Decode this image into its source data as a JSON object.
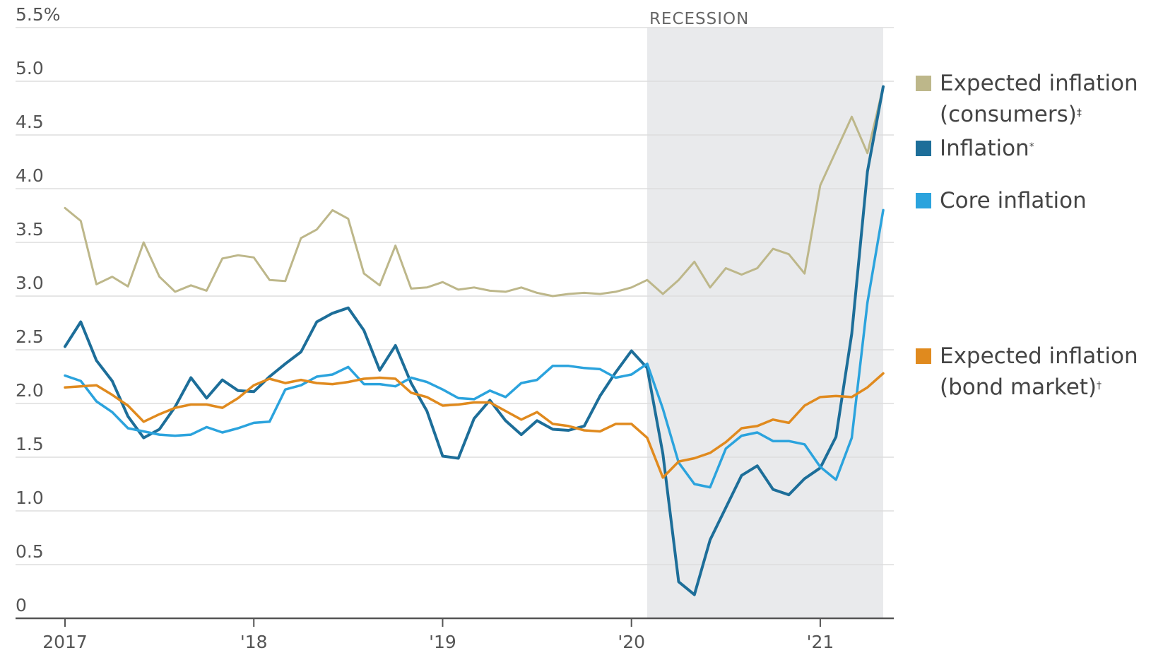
{
  "chart_data": {
    "type": "line",
    "y_axis": {
      "ticks": [
        "0",
        "0.5",
        "1.0",
        "1.5",
        "2.0",
        "2.5",
        "3.0",
        "3.5",
        "4.0",
        "4.5",
        "5.0",
        "5.5%"
      ],
      "ylim": [
        0,
        5.5
      ]
    },
    "x_axis": {
      "ticks": [
        "2017",
        "'18",
        "'19",
        "'20",
        "'21"
      ],
      "xlim": [
        "2017-01",
        "2021-05"
      ]
    },
    "recession": {
      "label": "RECESSION",
      "start": "2020-02",
      "end": "2021-05"
    },
    "grid": "horizontal",
    "legend_position": "right",
    "series": [
      {
        "name": "Expected inflation",
        "name_line2": "(consumers)",
        "marker": "‡",
        "color": "#bdb78a",
        "x": [
          "2017-01",
          "2017-02",
          "2017-03",
          "2017-04",
          "2017-05",
          "2017-06",
          "2017-07",
          "2017-08",
          "2017-09",
          "2017-10",
          "2017-11",
          "2017-12",
          "2018-01",
          "2018-02",
          "2018-03",
          "2018-04",
          "2018-05",
          "2018-06",
          "2018-07",
          "2018-08",
          "2018-09",
          "2018-10",
          "2018-11",
          "2018-12",
          "2019-01",
          "2019-02",
          "2019-03",
          "2019-04",
          "2019-05",
          "2019-06",
          "2019-07",
          "2019-08",
          "2019-09",
          "2019-10",
          "2019-11",
          "2019-12",
          "2020-01",
          "2020-02",
          "2020-03",
          "2020-04",
          "2020-05",
          "2020-06",
          "2020-07",
          "2020-08",
          "2020-09",
          "2020-10",
          "2020-11",
          "2020-12",
          "2021-01",
          "2021-02",
          "2021-03",
          "2021-04",
          "2021-05"
        ],
        "values": [
          3.82,
          3.7,
          3.11,
          3.18,
          3.09,
          3.5,
          3.18,
          3.04,
          3.1,
          3.05,
          3.35,
          3.38,
          3.36,
          3.15,
          3.14,
          3.54,
          3.62,
          3.8,
          3.72,
          3.21,
          3.1,
          3.47,
          3.07,
          3.08,
          3.13,
          3.06,
          3.08,
          3.05,
          3.04,
          3.08,
          3.03,
          3.0,
          3.02,
          3.03,
          3.02,
          3.04,
          3.08,
          3.15,
          3.02,
          3.15,
          3.32,
          3.08,
          3.26,
          3.2,
          3.26,
          3.44,
          3.39,
          3.21,
          4.03,
          4.35,
          4.67,
          4.33,
          4.95
        ]
      },
      {
        "name": "Inflation",
        "marker": "*",
        "color": "#1d6e99",
        "x": [
          "2017-01",
          "2017-02",
          "2017-03",
          "2017-04",
          "2017-05",
          "2017-06",
          "2017-07",
          "2017-08",
          "2017-09",
          "2017-10",
          "2017-11",
          "2017-12",
          "2018-01",
          "2018-02",
          "2018-03",
          "2018-04",
          "2018-05",
          "2018-06",
          "2018-07",
          "2018-08",
          "2018-09",
          "2018-10",
          "2018-11",
          "2018-12",
          "2019-01",
          "2019-02",
          "2019-03",
          "2019-04",
          "2019-05",
          "2019-06",
          "2019-07",
          "2019-08",
          "2019-09",
          "2019-10",
          "2019-11",
          "2019-12",
          "2020-01",
          "2020-02",
          "2020-03",
          "2020-04",
          "2020-05",
          "2020-06",
          "2020-07",
          "2020-08",
          "2020-09",
          "2020-10",
          "2020-11",
          "2020-12",
          "2021-01",
          "2021-02",
          "2021-03",
          "2021-04",
          "2021-05"
        ],
        "values": [
          2.53,
          2.76,
          2.4,
          2.21,
          1.88,
          1.68,
          1.76,
          1.97,
          2.24,
          2.05,
          2.22,
          2.12,
          2.11,
          2.25,
          2.37,
          2.48,
          2.76,
          2.84,
          2.89,
          2.68,
          2.31,
          2.54,
          2.19,
          1.93,
          1.51,
          1.49,
          1.86,
          2.03,
          1.84,
          1.71,
          1.84,
          1.76,
          1.75,
          1.79,
          2.07,
          2.29,
          2.49,
          2.33,
          1.53,
          0.34,
          0.22,
          0.73,
          1.03,
          1.33,
          1.42,
          1.2,
          1.15,
          1.3,
          1.4,
          1.69,
          2.65,
          4.16,
          4.95
        ]
      },
      {
        "name": "Core inflation",
        "color": "#2ba3dd",
        "x": [
          "2017-01",
          "2017-02",
          "2017-03",
          "2017-04",
          "2017-05",
          "2017-06",
          "2017-07",
          "2017-08",
          "2017-09",
          "2017-10",
          "2017-11",
          "2017-12",
          "2018-01",
          "2018-02",
          "2018-03",
          "2018-04",
          "2018-05",
          "2018-06",
          "2018-07",
          "2018-08",
          "2018-09",
          "2018-10",
          "2018-11",
          "2018-12",
          "2019-01",
          "2019-02",
          "2019-03",
          "2019-04",
          "2019-05",
          "2019-06",
          "2019-07",
          "2019-08",
          "2019-09",
          "2019-10",
          "2019-11",
          "2019-12",
          "2020-01",
          "2020-02",
          "2020-03",
          "2020-04",
          "2020-05",
          "2020-06",
          "2020-07",
          "2020-08",
          "2020-09",
          "2020-10",
          "2020-11",
          "2020-12",
          "2021-01",
          "2021-02",
          "2021-03",
          "2021-04",
          "2021-05"
        ],
        "values": [
          2.26,
          2.21,
          2.02,
          1.92,
          1.77,
          1.74,
          1.71,
          1.7,
          1.71,
          1.78,
          1.73,
          1.77,
          1.82,
          1.83,
          2.13,
          2.17,
          2.25,
          2.27,
          2.34,
          2.18,
          2.18,
          2.16,
          2.24,
          2.2,
          2.13,
          2.05,
          2.04,
          2.12,
          2.06,
          2.19,
          2.22,
          2.35,
          2.35,
          2.33,
          2.32,
          2.24,
          2.27,
          2.37,
          1.95,
          1.45,
          1.25,
          1.22,
          1.58,
          1.7,
          1.73,
          1.65,
          1.65,
          1.62,
          1.41,
          1.29,
          1.68,
          2.94,
          3.8
        ]
      },
      {
        "name": "Expected inflation",
        "name_line2": "(bond market)",
        "marker": "†",
        "color": "#e08a1e",
        "x": [
          "2017-01",
          "2017-02",
          "2017-03",
          "2017-04",
          "2017-05",
          "2017-06",
          "2017-07",
          "2017-08",
          "2017-09",
          "2017-10",
          "2017-11",
          "2017-12",
          "2018-01",
          "2018-02",
          "2018-03",
          "2018-04",
          "2018-05",
          "2018-06",
          "2018-07",
          "2018-08",
          "2018-09",
          "2018-10",
          "2018-11",
          "2018-12",
          "2019-01",
          "2019-02",
          "2019-03",
          "2019-04",
          "2019-05",
          "2019-06",
          "2019-07",
          "2019-08",
          "2019-09",
          "2019-10",
          "2019-11",
          "2019-12",
          "2020-01",
          "2020-02",
          "2020-03",
          "2020-04",
          "2020-05",
          "2020-06",
          "2020-07",
          "2020-08",
          "2020-09",
          "2020-10",
          "2020-11",
          "2020-12",
          "2021-01",
          "2021-02",
          "2021-03",
          "2021-04",
          "2021-05"
        ],
        "values": [
          2.15,
          2.16,
          2.17,
          2.08,
          1.98,
          1.83,
          1.9,
          1.96,
          1.99,
          1.99,
          1.96,
          2.05,
          2.17,
          2.23,
          2.19,
          2.22,
          2.19,
          2.18,
          2.2,
          2.23,
          2.24,
          2.23,
          2.1,
          2.06,
          1.98,
          1.99,
          2.01,
          2.01,
          1.93,
          1.85,
          1.92,
          1.81,
          1.79,
          1.75,
          1.74,
          1.81,
          1.81,
          1.68,
          1.31,
          1.46,
          1.49,
          1.54,
          1.64,
          1.77,
          1.79,
          1.85,
          1.82,
          1.98,
          2.06,
          2.07,
          2.06,
          2.15,
          2.28
        ]
      }
    ]
  }
}
